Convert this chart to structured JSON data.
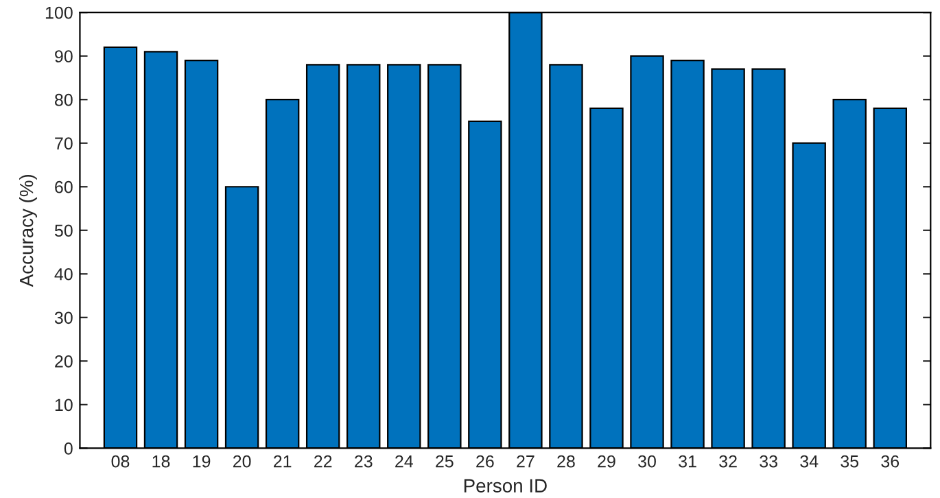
{
  "chart_data": {
    "type": "bar",
    "xlabel": "Person ID",
    "ylabel": "Accuracy (%)",
    "categories": [
      "08",
      "18",
      "19",
      "20",
      "21",
      "22",
      "23",
      "24",
      "25",
      "26",
      "27",
      "28",
      "29",
      "30",
      "31",
      "32",
      "33",
      "34",
      "35",
      "36"
    ],
    "values": [
      92,
      91,
      89,
      60,
      80,
      88,
      88,
      88,
      88,
      75,
      100,
      88,
      78,
      90,
      89,
      87,
      87,
      70,
      80,
      78
    ],
    "color": "#0072bd",
    "ylim": [
      0,
      100
    ],
    "yticks": [
      0,
      10,
      20,
      30,
      40,
      50,
      60,
      70,
      80,
      90,
      100
    ],
    "grid": false
  }
}
